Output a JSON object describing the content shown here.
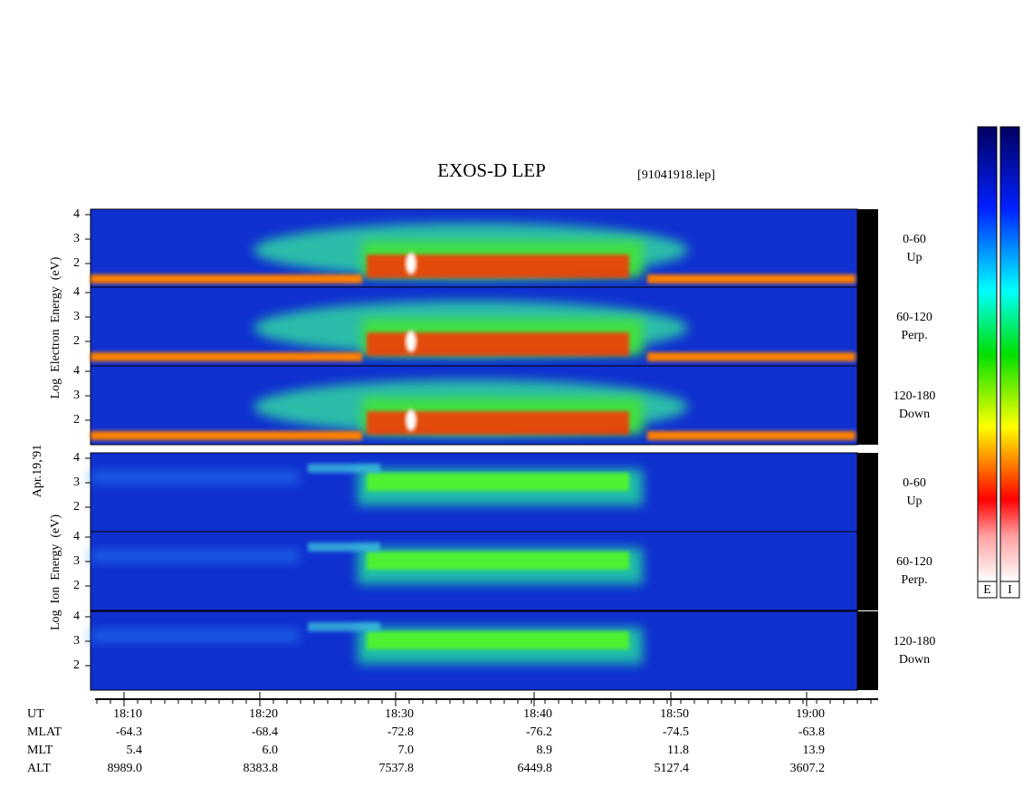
{
  "title": "EXOS-D LEP",
  "file": "[91041918.lep]",
  "date": "Apr.19,'91",
  "electron": {
    "ylabel": "Log  Electron  Energy  (eV)",
    "panels": [
      {
        "label": "0-60",
        "sub": "Up"
      },
      {
        "label": "60-120",
        "sub": "Perp."
      },
      {
        "label": "120-180",
        "sub": "Down"
      }
    ],
    "yticks": [
      2,
      3,
      4
    ]
  },
  "ion": {
    "ylabel": "Log  Ion  Energy  (eV)",
    "panels": [
      {
        "label": "0-60",
        "sub": "Up"
      },
      {
        "label": "60-120",
        "sub": "Perp."
      },
      {
        "label": "120-180",
        "sub": "Down"
      }
    ],
    "yticks": [
      2,
      3,
      4
    ]
  },
  "time_axis": {
    "rows": [
      {
        "name": "UT",
        "values": [
          "18:10",
          "18:20",
          "18:30",
          "18:40",
          "18:50",
          "19:00"
        ]
      },
      {
        "name": "MLAT",
        "values": [
          "-64.3",
          "-68.4",
          "-72.8",
          "-76.2",
          "-74.5",
          "-63.8"
        ]
      },
      {
        "name": "MLT",
        "values": [
          "5.4",
          "6.0",
          "7.0",
          "8.9",
          "11.8",
          "13.9"
        ]
      },
      {
        "name": "ALT",
        "values": [
          "8989.0",
          "8383.8",
          "7537.8",
          "6449.8",
          "5127.4",
          "3607.2"
        ]
      }
    ]
  },
  "colorbars": [
    "E",
    "I"
  ]
}
